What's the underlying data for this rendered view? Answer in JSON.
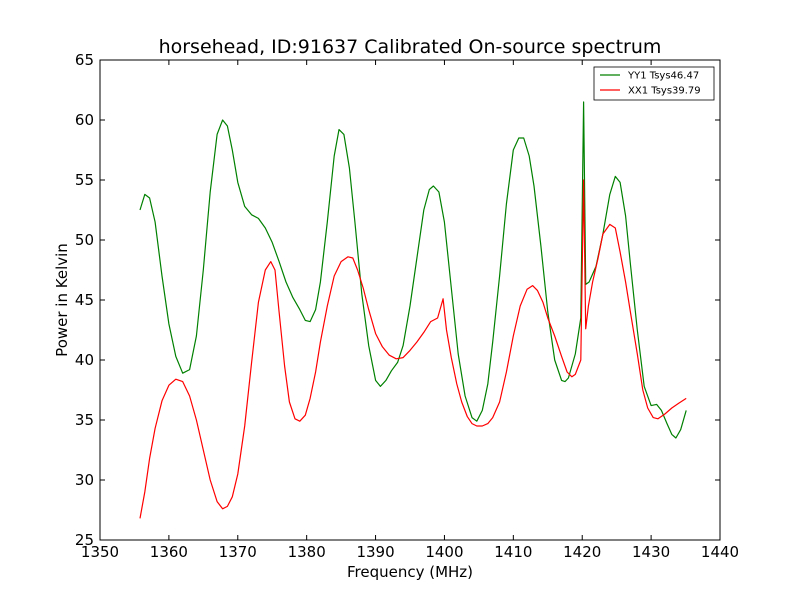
{
  "chart_data": {
    "type": "line",
    "title": "horsehead, ID:91637 Calibrated On-source spectrum",
    "xlabel": "Frequency (MHz)",
    "ylabel": "Power in Kelvin",
    "xlim": [
      1350,
      1440
    ],
    "ylim": [
      25,
      65
    ],
    "xticks": [
      1350,
      1360,
      1370,
      1380,
      1390,
      1400,
      1410,
      1420,
      1430,
      1440
    ],
    "yticks": [
      25,
      30,
      35,
      40,
      45,
      50,
      55,
      60,
      65
    ],
    "grid": false,
    "legend_position": "top-right",
    "series": [
      {
        "name": "YY1 Tsys46.47",
        "color": "#008000",
        "x": [
          1355.8,
          1356.5,
          1357.2,
          1358,
          1359,
          1360,
          1361,
          1362,
          1363,
          1364,
          1365,
          1366,
          1367,
          1367.8,
          1368.5,
          1369.2,
          1370,
          1371,
          1372,
          1373,
          1374,
          1375,
          1376,
          1377,
          1378,
          1379,
          1379.8,
          1380.5,
          1381.3,
          1382,
          1383,
          1384,
          1384.7,
          1385.4,
          1386.2,
          1387,
          1388,
          1389,
          1390,
          1390.7,
          1391.5,
          1392.3,
          1393.2,
          1394,
          1395,
          1396,
          1397,
          1397.8,
          1398.4,
          1399.2,
          1400,
          1401,
          1402,
          1403,
          1404,
          1404.7,
          1405.5,
          1406.3,
          1407,
          1408,
          1409,
          1410,
          1410.8,
          1411.5,
          1412.3,
          1413,
          1414,
          1415,
          1416,
          1417,
          1417.5,
          1418,
          1419,
          1419.8,
          1420.2,
          1420.5,
          1421,
          1422,
          1423,
          1424,
          1424.8,
          1425.5,
          1426.3,
          1427,
          1428,
          1429,
          1430,
          1430.8,
          1431.5,
          1432.3,
          1433,
          1433.6,
          1434.3,
          1435.1
        ],
        "values": [
          52.5,
          53.8,
          53.5,
          51.5,
          47,
          43,
          40.3,
          38.9,
          39.2,
          42,
          47.5,
          54,
          58.8,
          60,
          59.5,
          57.5,
          54.8,
          52.8,
          52.1,
          51.8,
          51,
          49.8,
          48.2,
          46.5,
          45.2,
          44.2,
          43.3,
          43.2,
          44.2,
          46.5,
          51.5,
          57,
          59.2,
          58.8,
          56,
          51.5,
          45.5,
          41.2,
          38.3,
          37.8,
          38.3,
          39.1,
          39.8,
          41.2,
          44.5,
          48.5,
          52.5,
          54.2,
          54.5,
          54,
          51.5,
          46,
          40.5,
          37,
          35.2,
          34.9,
          35.8,
          38,
          41.5,
          47,
          53,
          57.5,
          58.5,
          58.5,
          57,
          54.5,
          49.5,
          44,
          40,
          38.3,
          38.2,
          38.5,
          40.5,
          43.5,
          61.5,
          46.3,
          46.5,
          47.8,
          50.5,
          53.8,
          55.3,
          54.8,
          52,
          48,
          42.5,
          37.8,
          36.2,
          36.3,
          35.8,
          34.7,
          33.8,
          33.5,
          34.2,
          35.8
        ]
      },
      {
        "name": "XX1 Tsys39.79",
        "color": "#ff0000",
        "x": [
          1355.8,
          1356.5,
          1357.2,
          1358,
          1359,
          1360,
          1361,
          1362,
          1363,
          1364,
          1365,
          1366,
          1367,
          1367.8,
          1368.5,
          1369.2,
          1370,
          1371,
          1372,
          1373,
          1374,
          1374.8,
          1375.4,
          1376,
          1376.8,
          1377.5,
          1378.3,
          1379,
          1379.8,
          1380.5,
          1381.3,
          1382,
          1383,
          1384,
          1385,
          1386,
          1386.7,
          1387.4,
          1388.2,
          1389,
          1390,
          1391,
          1392,
          1393,
          1394,
          1395,
          1396,
          1397,
          1398,
          1399,
          1399.8,
          1400.3,
          1401,
          1401.8,
          1402.5,
          1403.3,
          1404,
          1404.7,
          1405.5,
          1406.3,
          1407,
          1408,
          1409,
          1410,
          1411,
          1412,
          1412.8,
          1413.5,
          1414.3,
          1415,
          1416,
          1417,
          1417.8,
          1418.5,
          1419,
          1419.8,
          1420.2,
          1420.5,
          1420.9,
          1421.5,
          1422.3,
          1423,
          1424,
          1424.8,
          1425.5,
          1426.3,
          1427,
          1428,
          1428.8,
          1429.5,
          1430.3,
          1431,
          1432,
          1433,
          1434,
          1435.1
        ],
        "values": [
          26.8,
          29,
          31.8,
          34.3,
          36.6,
          37.9,
          38.4,
          38.2,
          37,
          35,
          32.5,
          30,
          28.2,
          27.6,
          27.8,
          28.6,
          30.5,
          34.5,
          39.8,
          44.8,
          47.5,
          48.2,
          47.5,
          44,
          39.5,
          36.5,
          35.1,
          34.9,
          35.4,
          36.8,
          39,
          41.5,
          44.5,
          47,
          48.2,
          48.6,
          48.5,
          47.5,
          46,
          44.2,
          42.2,
          41.1,
          40.4,
          40.1,
          40.2,
          40.8,
          41.5,
          42.3,
          43.2,
          43.5,
          45.1,
          42.5,
          40.2,
          38,
          36.5,
          35.3,
          34.7,
          34.5,
          34.5,
          34.7,
          35.2,
          36.5,
          39,
          42,
          44.5,
          45.9,
          46.2,
          45.8,
          44.8,
          43.5,
          42,
          40.3,
          39,
          38.6,
          38.8,
          40,
          55,
          42.6,
          44.5,
          46.5,
          48.5,
          50.5,
          51.3,
          51,
          49,
          46.5,
          44,
          40.5,
          37.5,
          36,
          35.2,
          35.1,
          35.5,
          36,
          36.4,
          36.8
        ]
      }
    ]
  }
}
